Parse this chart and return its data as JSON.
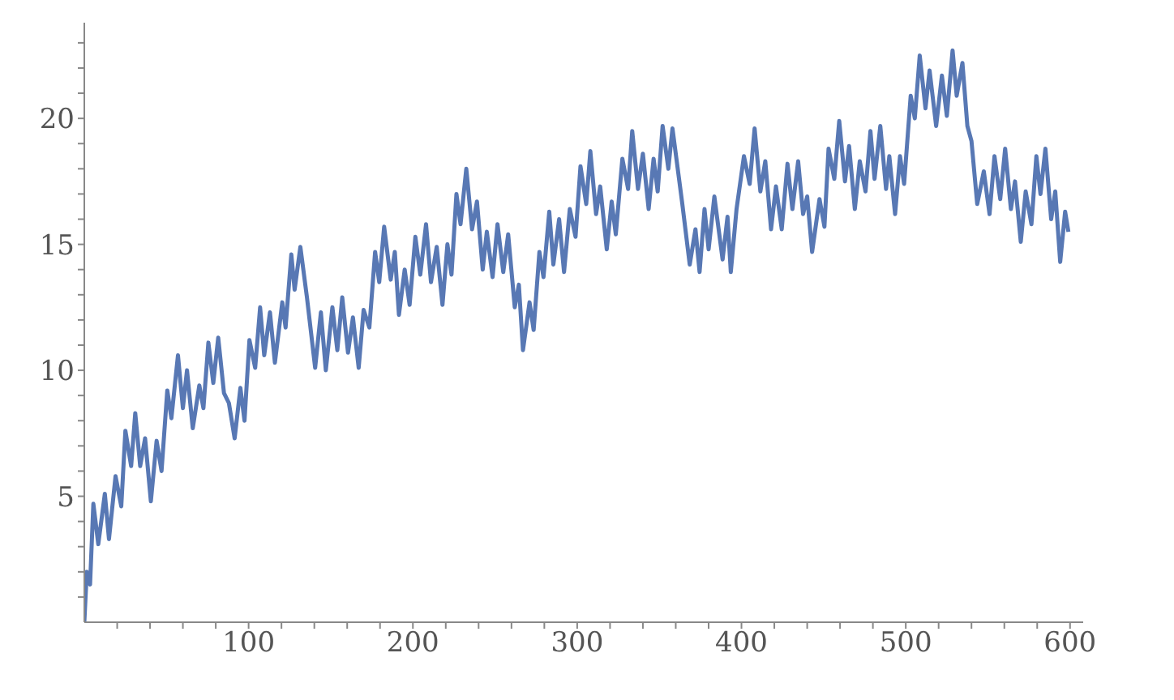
{
  "chart_data": {
    "type": "line",
    "color": "#5878b4",
    "marker": "none",
    "xlim": [
      0,
      608
    ],
    "ylim": [
      0,
      23.8
    ],
    "xticks": [
      {
        "value": 20,
        "label": null
      },
      {
        "value": 40,
        "label": null
      },
      {
        "value": 60,
        "label": null
      },
      {
        "value": 80,
        "label": null
      },
      100,
      {
        "value": 120,
        "label": null
      },
      {
        "value": 140,
        "label": null
      },
      {
        "value": 160,
        "label": null
      },
      {
        "value": 180,
        "label": null
      },
      200,
      {
        "value": 220,
        "label": null
      },
      {
        "value": 240,
        "label": null
      },
      {
        "value": 260,
        "label": null
      },
      {
        "value": 280,
        "label": null
      },
      300,
      {
        "value": 320,
        "label": null
      },
      {
        "value": 340,
        "label": null
      },
      {
        "value": 360,
        "label": null
      },
      {
        "value": 380,
        "label": null
      },
      400,
      {
        "value": 420,
        "label": null
      },
      {
        "value": 440,
        "label": null
      },
      {
        "value": 460,
        "label": null
      },
      {
        "value": 480,
        "label": null
      },
      500,
      {
        "value": 520,
        "label": null
      },
      {
        "value": 540,
        "label": null
      },
      {
        "value": 560,
        "label": null
      },
      {
        "value": 580,
        "label": null
      },
      600
    ],
    "yticks": [
      {
        "value": 1,
        "label": null
      },
      {
        "value": 2,
        "label": null
      },
      {
        "value": 3,
        "label": null
      },
      {
        "value": 4,
        "label": null
      },
      5,
      {
        "value": 6,
        "label": null
      },
      {
        "value": 7,
        "label": null
      },
      {
        "value": 8,
        "label": null
      },
      {
        "value": 9,
        "label": null
      },
      10,
      {
        "value": 11,
        "label": null
      },
      {
        "value": 12,
        "label": null
      },
      {
        "value": 13,
        "label": null
      },
      {
        "value": 14,
        "label": null
      },
      15,
      {
        "value": 16,
        "label": null
      },
      {
        "value": 17,
        "label": null
      },
      {
        "value": 18,
        "label": null
      },
      {
        "value": 19,
        "label": null
      },
      20,
      {
        "value": 21,
        "label": null
      },
      {
        "value": 22,
        "label": null
      },
      {
        "value": 23,
        "label": null
      }
    ],
    "x": [
      0,
      1.5,
      3.5,
      5.5,
      8.5,
      12.5,
      15,
      19,
      22.5,
      25,
      28.5,
      31,
      34,
      37,
      40.5,
      44,
      47,
      50.5,
      53,
      57,
      60,
      62.5,
      66,
      70,
      72.5,
      75.5,
      78.5,
      81.5,
      85,
      88,
      91.5,
      95,
      97.5,
      100.5,
      104,
      107,
      109.5,
      113,
      116,
      120.5,
      122.5,
      126,
      128,
      131.5,
      135.5,
      140.5,
      144,
      147,
      151,
      154,
      157,
      160.5,
      163.5,
      167,
      170,
      173.5,
      177,
      179.5,
      182.5,
      186.5,
      189,
      191.5,
      195,
      198,
      201.5,
      204.5,
      208,
      211,
      214.5,
      218,
      221,
      223.5,
      226.5,
      229,
      232.5,
      236,
      239,
      242.5,
      245,
      248.5,
      251.5,
      255,
      258,
      262,
      264.5,
      267,
      271,
      273.5,
      277,
      279.5,
      283,
      285.5,
      289,
      292,
      295.5,
      299,
      302,
      305.5,
      308,
      311.5,
      314,
      318,
      321,
      323.5,
      327.5,
      331,
      333.5,
      337,
      340,
      343.5,
      346.5,
      349,
      352,
      355.5,
      358,
      364,
      368.5,
      372,
      374.5,
      377.5,
      380,
      383.5,
      388.5,
      391.5,
      393.5,
      397,
      401.5,
      405,
      408,
      411.5,
      414.5,
      418,
      421,
      424.5,
      428,
      431,
      434.5,
      437.5,
      440,
      443,
      447.5,
      450.5,
      453,
      456.5,
      459.5,
      463,
      465.5,
      469,
      472,
      475.5,
      478.5,
      481,
      484.5,
      488,
      490,
      493.5,
      496.5,
      499,
      503,
      505.5,
      508.5,
      512,
      514.5,
      518.5,
      522,
      525,
      528.5,
      531,
      534.5,
      537.5,
      540,
      543.5,
      547.5,
      551,
      554,
      557.5,
      560.5,
      564,
      566.5,
      570,
      573,
      576.5,
      579.5,
      582,
      585,
      588.5,
      591,
      594,
      597,
      599
    ],
    "values": [
      0,
      2,
      1.5,
      4.7,
      3.1,
      5.1,
      3.3,
      5.8,
      4.6,
      7.6,
      6.2,
      8.3,
      6.2,
      7.3,
      4.8,
      7.2,
      6,
      9.2,
      8.1,
      10.6,
      8.5,
      10,
      7.7,
      9.4,
      8.5,
      11.1,
      9.5,
      11.3,
      9.1,
      8.7,
      7.3,
      9.3,
      8,
      11.2,
      10.1,
      12.5,
      10.6,
      12.3,
      10.3,
      12.7,
      11.7,
      14.6,
      13.2,
      14.9,
      12.9,
      10.1,
      12.3,
      10,
      12.5,
      10.8,
      12.9,
      10.7,
      12.1,
      10.1,
      12.4,
      11.7,
      14.7,
      13.5,
      15.7,
      13.6,
      14.7,
      12.2,
      14,
      12.6,
      15.3,
      13.8,
      15.8,
      13.5,
      14.9,
      12.6,
      15,
      13.8,
      17,
      15.8,
      18,
      15.6,
      16.7,
      14,
      15.5,
      13.7,
      15.8,
      13.9,
      15.4,
      12.5,
      13.4,
      10.8,
      12.7,
      11.6,
      14.7,
      13.7,
      16.3,
      14.2,
      16,
      13.9,
      16.4,
      15.3,
      18.1,
      16.6,
      18.7,
      16.2,
      17.3,
      14.8,
      16.7,
      15.4,
      18.4,
      17.2,
      19.5,
      17.2,
      18.6,
      16.4,
      18.4,
      17.1,
      19.7,
      18,
      19.6,
      16.6,
      14.2,
      15.6,
      13.9,
      16.4,
      14.8,
      16.9,
      14.4,
      16.1,
      13.9,
      16.4,
      18.5,
      17.4,
      19.6,
      17.1,
      18.3,
      15.6,
      17.3,
      15.6,
      18.2,
      16.4,
      18.3,
      16.2,
      16.9,
      14.7,
      16.8,
      15.7,
      18.8,
      17.6,
      19.9,
      17.5,
      18.9,
      16.4,
      18.3,
      17.1,
      19.5,
      17.6,
      19.7,
      17.2,
      18.5,
      16.2,
      18.5,
      17.4,
      20.9,
      20,
      22.5,
      20.4,
      21.9,
      19.7,
      21.7,
      20.1,
      22.7,
      20.9,
      22.2,
      19.7,
      19.1,
      16.6,
      17.9,
      16.2,
      18.5,
      16.8,
      18.8,
      16.4,
      17.5,
      15.1,
      17.1,
      15.8,
      18.5,
      17,
      18.8,
      16,
      17.1,
      14.3,
      16.3,
      15.5
    ]
  }
}
